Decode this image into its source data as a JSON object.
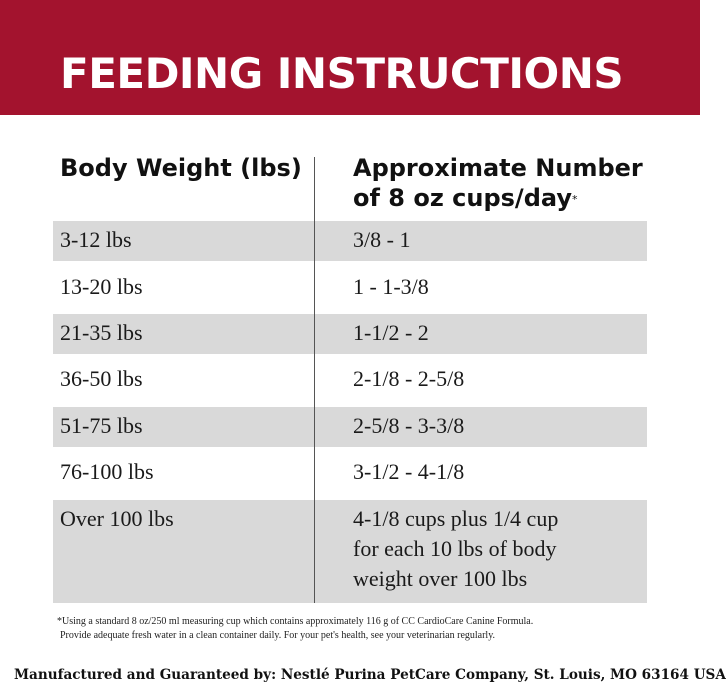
{
  "banner": {
    "title": "FEEDING INSTRUCTIONS"
  },
  "table": {
    "header_left": "Body Weight (lbs)",
    "header_right_line1": "Approximate Number",
    "header_right_line2": "of 8 oz cups/day",
    "header_right_mark": "*",
    "rows": [
      {
        "weight": "3-12 lbs",
        "cups": [
          "3/8 - 1"
        ]
      },
      {
        "weight": "13-20 lbs",
        "cups": [
          "1 - 1-3/8"
        ]
      },
      {
        "weight": "21-35 lbs",
        "cups": [
          "1-1/2 - 2"
        ]
      },
      {
        "weight": "36-50 lbs",
        "cups": [
          "2-1/8 - 2-5/8"
        ]
      },
      {
        "weight": "51-75 lbs",
        "cups": [
          "2-5/8 - 3-3/8"
        ]
      },
      {
        "weight": "76-100 lbs",
        "cups": [
          "3-1/2 - 4-1/8"
        ]
      },
      {
        "weight": "Over 100 lbs",
        "cups": [
          "4-1/8 cups plus 1/4 cup",
          "for each 10 lbs of body",
          "weight over 100 lbs"
        ]
      }
    ]
  },
  "footnote": {
    "line1": "*Using a standard 8 oz/250 ml measuring cup which contains approximately 116 g of CC CardioCare Canine Formula.",
    "line2": "Provide adequate fresh water in a clean container daily. For your pet's health, see your veterinarian regularly."
  },
  "manufacturer": "Manufactured and Guaranteed by: Nestlé Purina PetCare Company, St. Louis, MO 63164 USA",
  "colors": {
    "banner": "#a3132e",
    "row_shade": "#d9d9d9"
  }
}
